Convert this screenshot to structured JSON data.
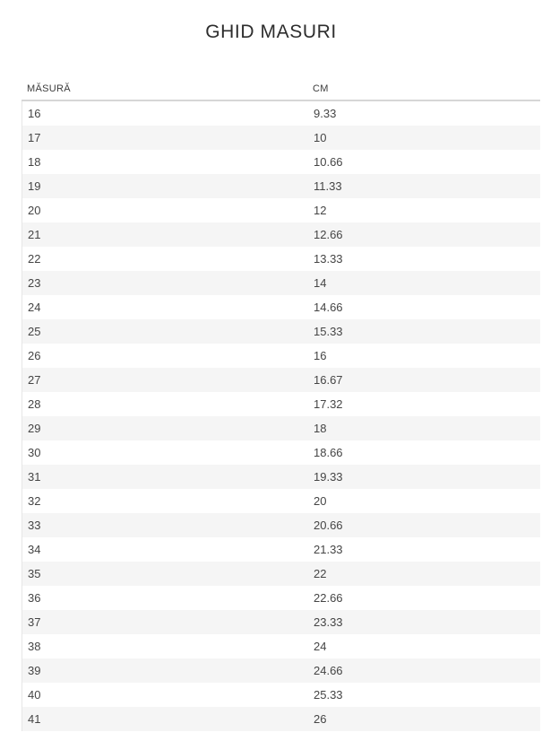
{
  "page": {
    "title": "GHID MASURI"
  },
  "table": {
    "headers": {
      "size": "MĂSURĂ",
      "cm": "CM"
    },
    "rows": [
      {
        "size": "16",
        "cm": "9.33"
      },
      {
        "size": "17",
        "cm": "10"
      },
      {
        "size": "18",
        "cm": "10.66"
      },
      {
        "size": "19",
        "cm": "11.33"
      },
      {
        "size": "20",
        "cm": "12"
      },
      {
        "size": "21",
        "cm": "12.66"
      },
      {
        "size": "22",
        "cm": "13.33"
      },
      {
        "size": "23",
        "cm": "14"
      },
      {
        "size": "24",
        "cm": "14.66"
      },
      {
        "size": "25",
        "cm": "15.33"
      },
      {
        "size": "26",
        "cm": "16"
      },
      {
        "size": "27",
        "cm": "16.67"
      },
      {
        "size": "28",
        "cm": "17.32"
      },
      {
        "size": "29",
        "cm": "18"
      },
      {
        "size": "30",
        "cm": "18.66"
      },
      {
        "size": "31",
        "cm": "19.33"
      },
      {
        "size": "32",
        "cm": "20"
      },
      {
        "size": "33",
        "cm": "20.66"
      },
      {
        "size": "34",
        "cm": "21.33"
      },
      {
        "size": "35",
        "cm": "22"
      },
      {
        "size": "36",
        "cm": "22.66"
      },
      {
        "size": "37",
        "cm": "23.33"
      },
      {
        "size": "38",
        "cm": "24"
      },
      {
        "size": "39",
        "cm": "24.66"
      },
      {
        "size": "40",
        "cm": "25.33"
      },
      {
        "size": "41",
        "cm": "26"
      }
    ]
  },
  "colors": {
    "stripe": "#f5f5f5",
    "header_border": "#d6d6d6",
    "text": "#454545"
  }
}
